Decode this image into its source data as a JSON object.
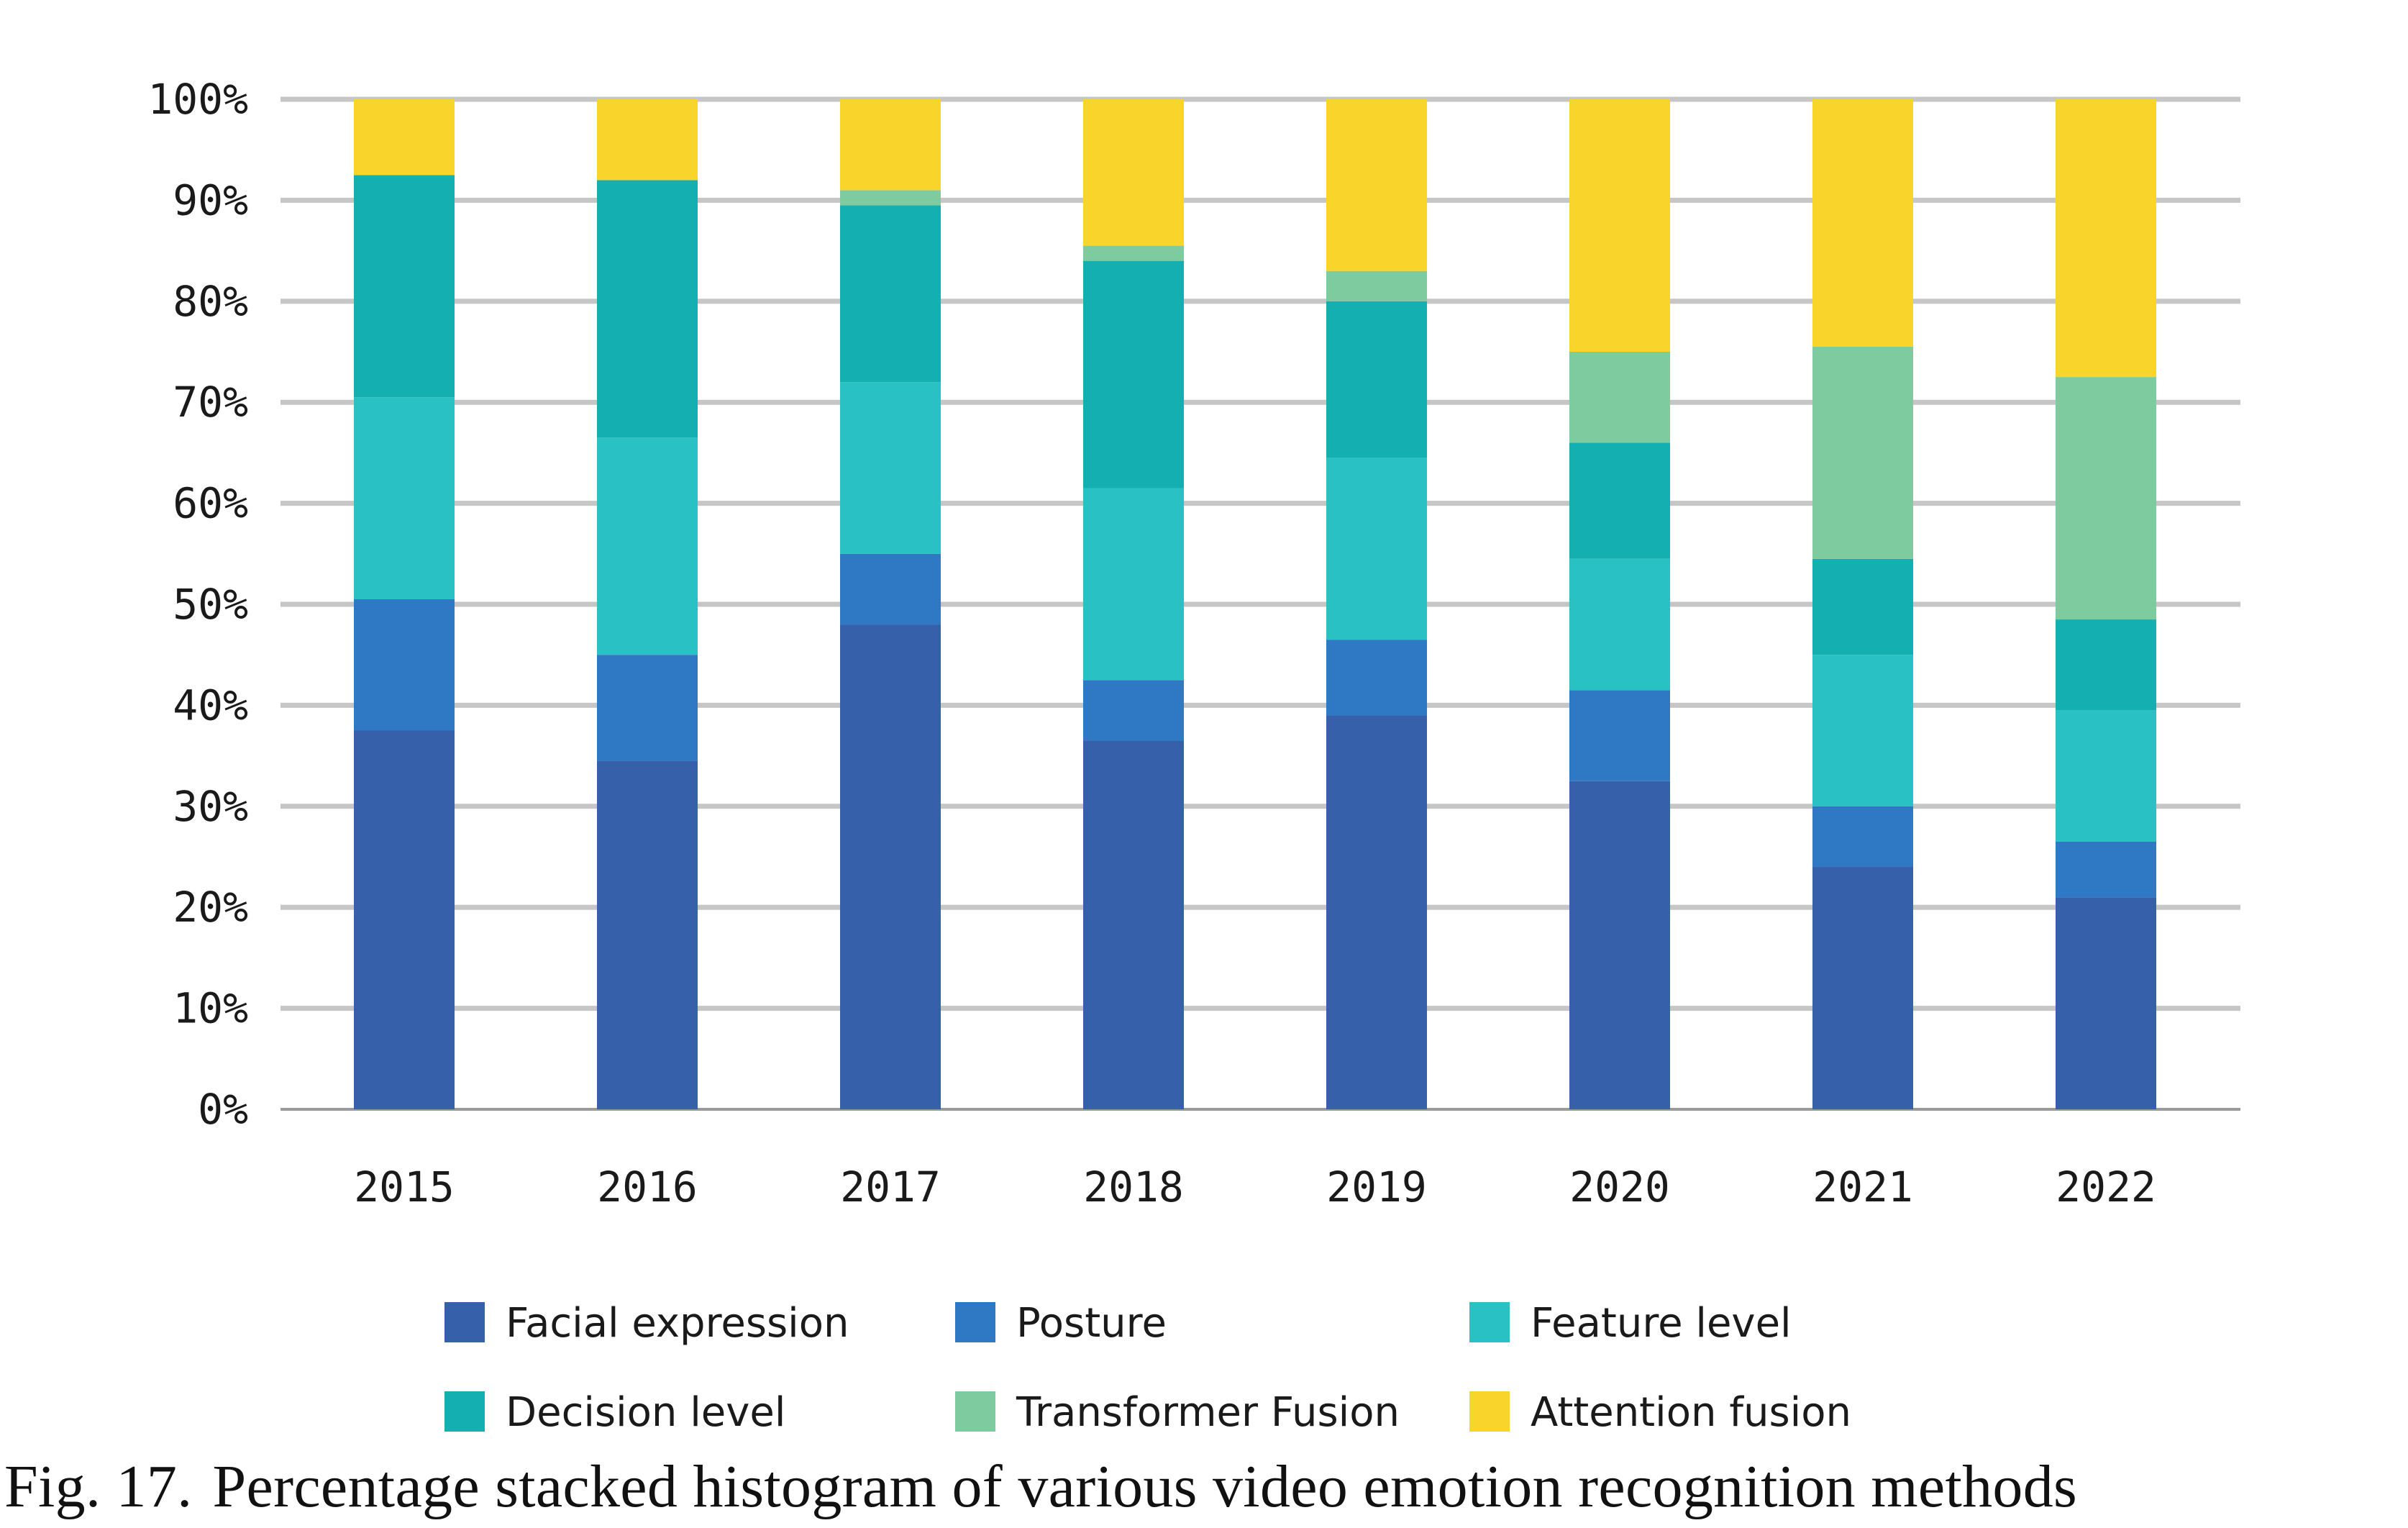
{
  "chart_data": {
    "type": "bar",
    "stacked": "percent",
    "title": "",
    "xlabel": "",
    "ylabel": "",
    "ylim": [
      0,
      100
    ],
    "yticks": [
      "0%",
      "10%",
      "20%",
      "30%",
      "40%",
      "50%",
      "60%",
      "70%",
      "80%",
      "90%",
      "100%"
    ],
    "grid": true,
    "legend_position": "bottom",
    "categories": [
      "2015",
      "2016",
      "2017",
      "2018",
      "2019",
      "2020",
      "2021",
      "2022"
    ],
    "series": [
      {
        "name": "Facial expression",
        "color": "#3660AA",
        "values": [
          37.5,
          34.5,
          48.0,
          36.5,
          39.0,
          32.5,
          24.0,
          21.0
        ]
      },
      {
        "name": "Posture",
        "color": "#2F79C4",
        "values": [
          13.0,
          10.5,
          7.0,
          6.0,
          7.5,
          9.0,
          6.0,
          5.5
        ]
      },
      {
        "name": "Feature level",
        "color": "#29C1C3",
        "values": [
          20.0,
          21.5,
          17.0,
          19.0,
          18.0,
          13.0,
          15.0,
          13.0
        ]
      },
      {
        "name": "Decision level",
        "color": "#14AFB0",
        "values": [
          22.0,
          25.5,
          17.5,
          22.5,
          15.5,
          11.5,
          9.5,
          9.0
        ]
      },
      {
        "name": "Transformer Fusion",
        "color": "#7DCB9F",
        "values": [
          0.0,
          0.0,
          1.5,
          1.5,
          3.0,
          9.0,
          21.0,
          24.0
        ]
      },
      {
        "name": "Attention fusion",
        "color": "#F9D52B",
        "values": [
          7.5,
          8.0,
          9.0,
          14.5,
          17.0,
          25.0,
          24.5,
          27.5
        ]
      }
    ]
  },
  "caption": {
    "number": "Fig. 17.",
    "text": "Percentage stacked histogram of various video emotion recognition methods"
  }
}
